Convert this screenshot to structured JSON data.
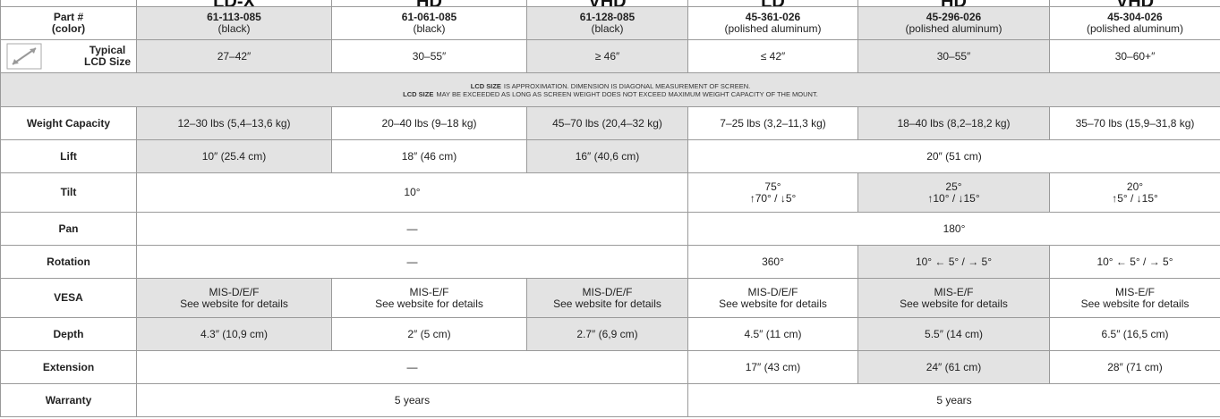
{
  "table": {
    "series_names": [
      "LD-X",
      "HD",
      "VHD",
      "LD",
      "HD",
      "VHD"
    ],
    "top_rows": [
      {
        "label": [
          "Part #",
          "(color)"
        ],
        "cells": [
          {
            "lines": [
              "61-113-085",
              "(black)"
            ],
            "span": 1
          },
          {
            "lines": [
              "61-061-085",
              "(black)"
            ],
            "span": 1
          },
          {
            "lines": [
              "61-128-085",
              "(black)"
            ],
            "span": 1
          },
          {
            "lines": [
              "45-361-026",
              "(polished aluminum)"
            ],
            "span": 1
          },
          {
            "lines": [
              "45-296-026",
              "(polished aluminum)"
            ],
            "span": 1
          },
          {
            "lines": [
              "45-304-026",
              "(polished aluminum)"
            ],
            "span": 1
          }
        ]
      },
      {
        "label": [
          "Typical",
          "LCD Size"
        ],
        "cells": [
          {
            "lines": [
              "27–42″"
            ],
            "span": 1
          },
          {
            "lines": [
              "30–55″"
            ],
            "span": 1
          },
          {
            "lines": [
              "≥ 46″"
            ],
            "span": 1
          },
          {
            "lines": [
              "≤ 42″"
            ],
            "span": 1
          },
          {
            "lines": [
              "30–55″"
            ],
            "span": 1
          },
          {
            "lines": [
              "30–60+″"
            ],
            "span": 1
          }
        ]
      }
    ],
    "note": [
      {
        "bold": "LCD SIZE",
        "rest": "IS APPROXIMATION. DIMENSION IS DIAGONAL MEASUREMENT OF SCREEN."
      },
      {
        "bold": "LCD SIZE",
        "rest": "MAY BE EXCEEDED AS LONG AS SCREEN WEIGHT DOES NOT EXCEED MAXIMUM WEIGHT CAPACITY OF THE MOUNT."
      }
    ],
    "rows": [
      {
        "label": [
          "Weight Capacity"
        ],
        "cells": [
          {
            "lines": [
              "12–30 lbs (5,4–13,6 kg)"
            ],
            "span": 1
          },
          {
            "lines": [
              "20–40 lbs (9–18 kg)"
            ],
            "span": 1
          },
          {
            "lines": [
              "45–70 lbs (20,4–32 kg)"
            ],
            "span": 1
          },
          {
            "lines": [
              "7–25 lbs (3,2–11,3 kg)"
            ],
            "span": 1
          },
          {
            "lines": [
              "18–40 lbs (8,2–18,2 kg)"
            ],
            "span": 1
          },
          {
            "lines": [
              "35–70 lbs (15,9–31,8 kg)"
            ],
            "span": 1
          }
        ]
      },
      {
        "label": [
          "Lift"
        ],
        "cells": [
          {
            "lines": [
              "10″ (25.4 cm)"
            ],
            "span": 1
          },
          {
            "lines": [
              "18″ (46 cm)"
            ],
            "span": 1
          },
          {
            "lines": [
              "16″ (40,6 cm)"
            ],
            "span": 1
          },
          {
            "lines": [
              "20″ (51 cm)"
            ],
            "span": 3
          }
        ]
      },
      {
        "label": [
          "Tilt"
        ],
        "cells": [
          {
            "lines": [
              "10°"
            ],
            "span": 3
          },
          {
            "lines": [
              "75°",
              "↑70° / ↓5°"
            ],
            "span": 1
          },
          {
            "lines": [
              "25°",
              "↑10° / ↓15°"
            ],
            "span": 1
          },
          {
            "lines": [
              "20°",
              "↑5° / ↓15°"
            ],
            "span": 1
          }
        ]
      },
      {
        "label": [
          "Pan"
        ],
        "cells": [
          {
            "lines": [
              "—"
            ],
            "span": 3
          },
          {
            "lines": [
              "180°"
            ],
            "span": 3
          }
        ]
      },
      {
        "label": [
          "Rotation"
        ],
        "cells": [
          {
            "lines": [
              "—"
            ],
            "span": 3
          },
          {
            "lines": [
              "360°"
            ],
            "span": 1
          },
          {
            "lines": [
              "10°  ← 5° / → 5°"
            ],
            "span": 1
          },
          {
            "lines": [
              "10°  ← 5° / → 5°"
            ],
            "span": 1
          }
        ]
      },
      {
        "label": [
          "VESA"
        ],
        "cells": [
          {
            "lines": [
              "MIS-D/E/F",
              "See website for details"
            ],
            "span": 1
          },
          {
            "lines": [
              "MIS-E/F",
              "See website for details"
            ],
            "span": 1
          },
          {
            "lines": [
              "MIS-D/E/F",
              "See website for details"
            ],
            "span": 1
          },
          {
            "lines": [
              "MIS-D/E/F",
              "See website for details"
            ],
            "span": 1
          },
          {
            "lines": [
              "MIS-E/F",
              "See website for details"
            ],
            "span": 1
          },
          {
            "lines": [
              "MIS-E/F",
              "See website for details"
            ],
            "span": 1
          }
        ]
      },
      {
        "label": [
          "Depth"
        ],
        "cells": [
          {
            "lines": [
              "4.3″ (10,9 cm)"
            ],
            "span": 1
          },
          {
            "lines": [
              "2″ (5 cm)"
            ],
            "span": 1
          },
          {
            "lines": [
              "2.7″ (6,9 cm)"
            ],
            "span": 1
          },
          {
            "lines": [
              "4.5″ (11 cm)"
            ],
            "span": 1
          },
          {
            "lines": [
              "5.5″ (14 cm)"
            ],
            "span": 1
          },
          {
            "lines": [
              "6.5″ (16,5 cm)"
            ],
            "span": 1
          }
        ]
      },
      {
        "label": [
          "Extension"
        ],
        "cells": [
          {
            "lines": [
              "—"
            ],
            "span": 3
          },
          {
            "lines": [
              "17″ (43 cm)"
            ],
            "span": 1
          },
          {
            "lines": [
              "24″ (61 cm)"
            ],
            "span": 1
          },
          {
            "lines": [
              "28″ (71 cm)"
            ],
            "span": 1
          }
        ]
      },
      {
        "label": [
          "Warranty"
        ],
        "cells": [
          {
            "lines": [
              "5 years"
            ],
            "span": 3
          },
          {
            "lines": [
              "5 years"
            ],
            "span": 3
          }
        ]
      }
    ]
  }
}
